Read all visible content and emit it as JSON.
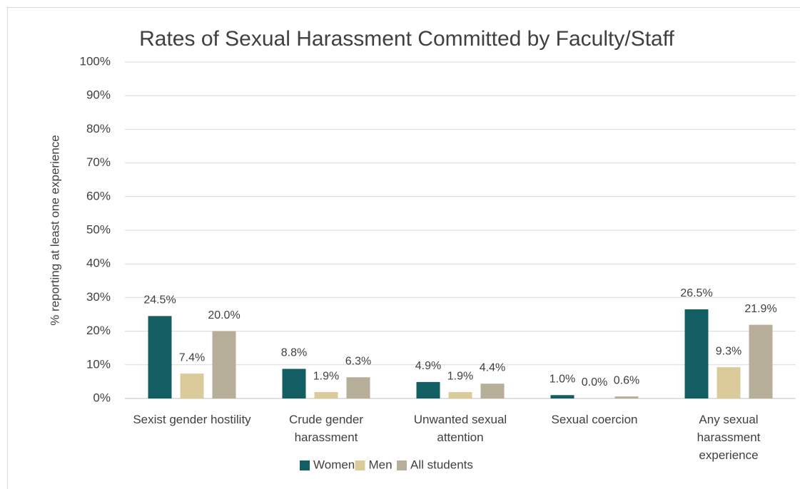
{
  "chart_data": {
    "type": "bar",
    "title": "Rates of Sexual Harassment Committed by Faculty/Staff",
    "y_label": "% reporting at least one experience",
    "categories": [
      "Sexist gender hostility",
      "Crude gender harassment",
      "Unwanted sexual attention",
      "Sexual coercion",
      "Any sexual harassment experience"
    ],
    "series": [
      {
        "name": "Women",
        "color": "#135e63",
        "values": [
          24.5,
          8.8,
          4.9,
          1.0,
          26.5
        ],
        "value_labels": [
          "24.5%",
          "8.8%",
          "4.9%",
          "1.0%",
          "26.5%"
        ]
      },
      {
        "name": "Men",
        "color": "#dccb9a",
        "values": [
          7.4,
          1.9,
          1.9,
          0.0,
          9.3
        ],
        "value_labels": [
          "7.4%",
          "1.9%",
          "1.9%",
          "0.0%",
          "9.3%"
        ]
      },
      {
        "name": "All students",
        "color": "#b6ae98",
        "values": [
          20.0,
          6.3,
          4.4,
          0.6,
          21.9
        ],
        "value_labels": [
          "20.0%",
          "6.3%",
          "4.4%",
          "0.6%",
          "21.9%"
        ]
      }
    ],
    "ylim": [
      0,
      100
    ],
    "yticks": [
      {
        "value": 0,
        "label": "0%"
      },
      {
        "value": 10,
        "label": "10%"
      },
      {
        "value": 20,
        "label": "20%"
      },
      {
        "value": 30,
        "label": "30%"
      },
      {
        "value": 40,
        "label": "40%"
      },
      {
        "value": 50,
        "label": "50%"
      },
      {
        "value": 60,
        "label": "60%"
      },
      {
        "value": 70,
        "label": "70%"
      },
      {
        "value": 80,
        "label": "80%"
      },
      {
        "value": 90,
        "label": "90%"
      },
      {
        "value": 100,
        "label": "100%"
      }
    ],
    "grid": true,
    "legend": "bottom"
  }
}
